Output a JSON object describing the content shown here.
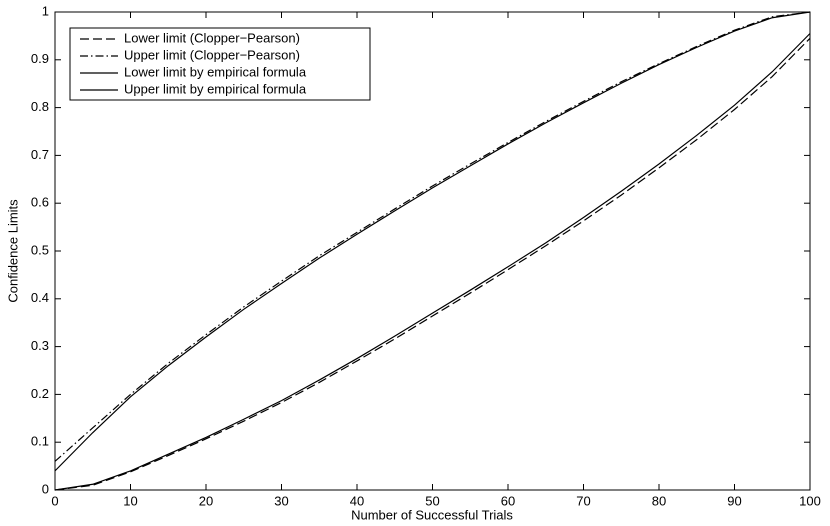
{
  "chart_data": {
    "type": "line",
    "x_label": "Number of Successful Trials",
    "y_label": "Confidence Limits",
    "x": [
      0,
      5,
      10,
      15,
      20,
      25,
      30,
      35,
      40,
      45,
      50,
      55,
      60,
      65,
      70,
      75,
      80,
      85,
      90,
      95,
      100
    ],
    "series": [
      {
        "name": "Lower limit (Clopper−Pearson)",
        "color": "#000000",
        "dash": "dashed",
        "values": [
          0,
          0.01,
          0.038,
          0.072,
          0.107,
          0.144,
          0.183,
          0.225,
          0.27,
          0.316,
          0.364,
          0.412,
          0.461,
          0.511,
          0.563,
          0.617,
          0.674,
          0.733,
          0.796,
          0.865,
          0.945
        ]
      },
      {
        "name": "Upper limit (Clopper−Pearson)",
        "color": "#000000",
        "dash": "dashdot",
        "values": [
          0.06,
          0.13,
          0.2,
          0.265,
          0.325,
          0.383,
          0.437,
          0.49,
          0.539,
          0.588,
          0.636,
          0.682,
          0.727,
          0.771,
          0.813,
          0.854,
          0.892,
          0.928,
          0.962,
          0.99,
          1
        ]
      },
      {
        "name": "Lower limit by empirical formula",
        "color": "#000000",
        "dash": "solid",
        "values": [
          0,
          0.012,
          0.04,
          0.075,
          0.11,
          0.148,
          0.187,
          0.23,
          0.275,
          0.322,
          0.37,
          0.418,
          0.467,
          0.517,
          0.57,
          0.625,
          0.682,
          0.742,
          0.805,
          0.875,
          0.955
        ]
      },
      {
        "name": "Upper limit by empirical formula",
        "color": "#000000",
        "dash": "solid",
        "values": [
          0.04,
          0.12,
          0.195,
          0.26,
          0.32,
          0.378,
          0.432,
          0.485,
          0.535,
          0.584,
          0.632,
          0.678,
          0.724,
          0.768,
          0.81,
          0.851,
          0.89,
          0.926,
          0.96,
          0.988,
          1
        ]
      }
    ],
    "xlim": [
      0,
      100
    ],
    "xticks": [
      0,
      10,
      20,
      30,
      40,
      50,
      60,
      70,
      80,
      90,
      100
    ],
    "ylim": [
      0,
      1
    ],
    "yticks": [
      0,
      0.1,
      0.2,
      0.3,
      0.4,
      0.5,
      0.6,
      0.7,
      0.8,
      0.9,
      1
    ],
    "legend": "upper-left",
    "grid": false
  }
}
